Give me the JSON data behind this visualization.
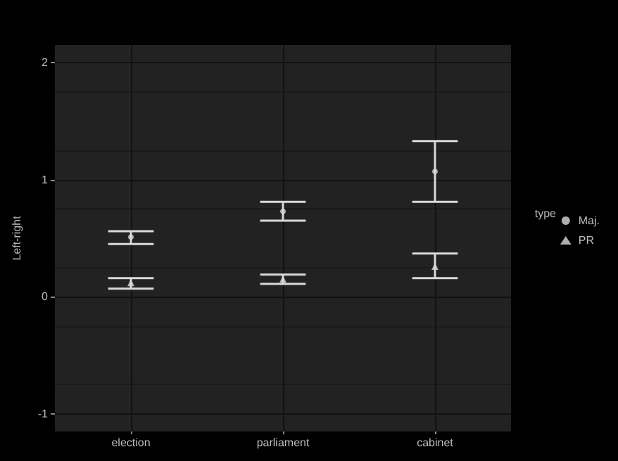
{
  "chart_data": {
    "type": "scatter",
    "ylabel": "Left-right",
    "legend_title": "type",
    "categories": [
      "election",
      "parliament",
      "cabinet"
    ],
    "series": [
      {
        "name": "Maj.",
        "color": "#d9d9d9",
        "marker": "circle",
        "values": [
          0.51,
          0.73,
          1.07
        ],
        "errors": [
          [
            0.45,
            0.56
          ],
          [
            0.65,
            0.81
          ],
          [
            0.81,
            1.33
          ]
        ]
      },
      {
        "name": "PR",
        "color": "#d9d9d9",
        "marker": "triangle",
        "values": [
          0.12,
          0.15,
          0.26
        ],
        "errors": [
          [
            0.07,
            0.16
          ],
          [
            0.11,
            0.19
          ],
          [
            0.16,
            0.37
          ]
        ]
      }
    ],
    "ylim": [
      -1.15,
      2.15
    ],
    "yticks": [
      -1,
      0,
      1,
      2
    ],
    "grid": true,
    "legend": "right"
  }
}
